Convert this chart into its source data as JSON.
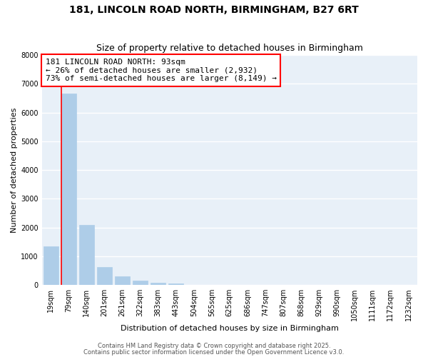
{
  "title": "181, LINCOLN ROAD NORTH, BIRMINGHAM, B27 6RT",
  "subtitle": "Size of property relative to detached houses in Birmingham",
  "xlabel": "Distribution of detached houses by size in Birmingham",
  "ylabel": "Number of detached properties",
  "bar_labels": [
    "19sqm",
    "79sqm",
    "140sqm",
    "201sqm",
    "261sqm",
    "322sqm",
    "383sqm",
    "443sqm",
    "504sqm",
    "565sqm",
    "625sqm",
    "686sqm",
    "747sqm",
    "807sqm",
    "868sqm",
    "929sqm",
    "990sqm",
    "1050sqm",
    "1111sqm",
    "1172sqm",
    "1232sqm"
  ],
  "bar_values": [
    1340,
    6650,
    2090,
    630,
    310,
    155,
    80,
    60,
    0,
    0,
    0,
    0,
    0,
    0,
    0,
    0,
    0,
    0,
    0,
    0,
    0
  ],
  "bar_color": "#aecde8",
  "bar_edge_color": "#aecde8",
  "property_line_color": "red",
  "property_line_x": 0.575,
  "annotation_text": "181 LINCOLN ROAD NORTH: 93sqm\n← 26% of detached houses are smaller (2,932)\n73% of semi-detached houses are larger (8,149) →",
  "annotation_box_color": "white",
  "annotation_box_edge_color": "red",
  "ylim": [
    0,
    8000
  ],
  "yticks": [
    0,
    1000,
    2000,
    3000,
    4000,
    5000,
    6000,
    7000,
    8000
  ],
  "background_color": "#e8f0f8",
  "grid_color": "white",
  "footer1": "Contains HM Land Registry data © Crown copyright and database right 2025.",
  "footer2": "Contains public sector information licensed under the Open Government Licence v3.0.",
  "title_fontsize": 10,
  "subtitle_fontsize": 9,
  "axis_label_fontsize": 8,
  "tick_fontsize": 7,
  "annotation_fontsize": 8,
  "footer_fontsize": 6
}
